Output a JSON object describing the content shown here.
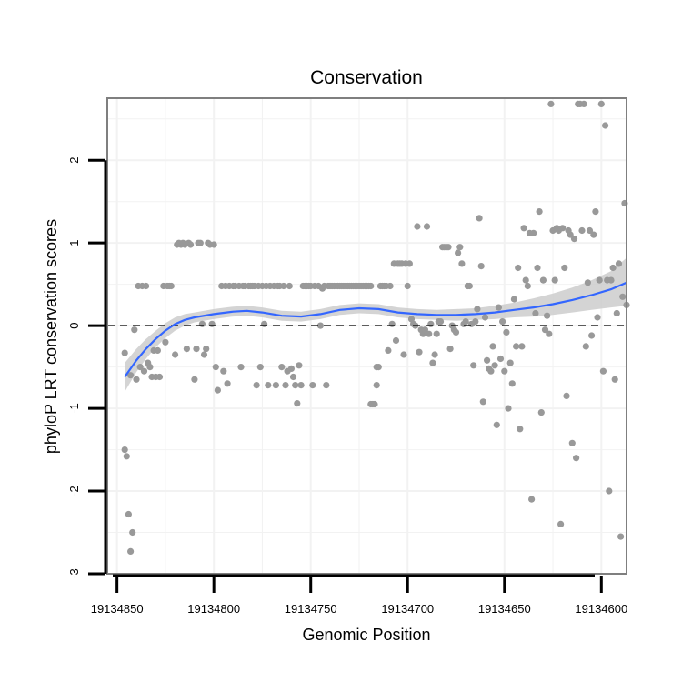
{
  "chart_data": {
    "type": "scatter",
    "title": "Conservation",
    "xlabel": "Genomic Position",
    "ylabel": "phyloP LRT conservation scores",
    "x_reversed": true,
    "xlim": [
      19134855,
      19134587
    ],
    "ylim": [
      -3,
      2.75
    ],
    "x_ticks": [
      19134850,
      19134800,
      19134750,
      19134700,
      19134650,
      19134600
    ],
    "x_tick_labels": [
      "19134850",
      "19134800",
      "19134750",
      "19134700",
      "19134650",
      "19134600"
    ],
    "y_ticks": [
      -3,
      -2,
      -1,
      0,
      1,
      2
    ],
    "y_tick_labels": [
      "-3",
      "-2",
      "-1",
      "0",
      "1",
      "2"
    ],
    "reference_line": {
      "y": 0,
      "style": "dashed"
    },
    "colors": {
      "points": "#999999",
      "smooth": "#3366ff",
      "ribbon": "#cccccc",
      "frame": "#7f7f7f",
      "grid": "#f2f2f2"
    },
    "points": [
      [
        19134846,
        -0.33
      ],
      [
        19134846,
        -1.5
      ],
      [
        19134845,
        -1.58
      ],
      [
        19134844,
        -2.28
      ],
      [
        19134843,
        -2.73
      ],
      [
        19134842,
        -2.5
      ],
      [
        19134843,
        -0.6
      ],
      [
        19134841,
        -0.05
      ],
      [
        19134840,
        -0.65
      ],
      [
        19134839,
        0.48
      ],
      [
        19134838,
        -0.5
      ],
      [
        19134837,
        0.48
      ],
      [
        19134836,
        -0.55
      ],
      [
        19134835,
        0.48
      ],
      [
        19134834,
        -0.45
      ],
      [
        19134833,
        -0.5
      ],
      [
        19134832,
        -0.62
      ],
      [
        19134831,
        -0.3
      ],
      [
        19134830,
        -0.62
      ],
      [
        19134829,
        -0.3
      ],
      [
        19134828,
        -0.62
      ],
      [
        19134826,
        0.48
      ],
      [
        19134825,
        -0.2
      ],
      [
        19134824,
        0.48
      ],
      [
        19134823,
        0.48
      ],
      [
        19134822,
        0.48
      ],
      [
        19134820,
        -0.35
      ],
      [
        19134819,
        0.98
      ],
      [
        19134818,
        1.0
      ],
      [
        19134817,
        0.98
      ],
      [
        19134816,
        1.0
      ],
      [
        19134815,
        0.98
      ],
      [
        19134814,
        -0.28
      ],
      [
        19134813,
        1.0
      ],
      [
        19134812,
        0.98
      ],
      [
        19134810,
        -0.65
      ],
      [
        19134809,
        -0.28
      ],
      [
        19134808,
        1.0
      ],
      [
        19134807,
        1.0
      ],
      [
        19134806,
        0.02
      ],
      [
        19134805,
        -0.35
      ],
      [
        19134804,
        -0.28
      ],
      [
        19134803,
        1.0
      ],
      [
        19134802,
        0.98
      ],
      [
        19134801,
        0.02
      ],
      [
        19134800,
        0.98
      ],
      [
        19134799,
        -0.5
      ],
      [
        19134798,
        -0.78
      ],
      [
        19134796,
        0.48
      ],
      [
        19134795,
        -0.55
      ],
      [
        19134794,
        0.48
      ],
      [
        19134793,
        -0.7
      ],
      [
        19134792,
        0.48
      ],
      [
        19134790,
        0.48
      ],
      [
        19134789,
        0.48
      ],
      [
        19134787,
        0.48
      ],
      [
        19134786,
        -0.5
      ],
      [
        19134785,
        0.48
      ],
      [
        19134784,
        0.48
      ],
      [
        19134782,
        0.48
      ],
      [
        19134781,
        0.48
      ],
      [
        19134780,
        0.48
      ],
      [
        19134779,
        0.48
      ],
      [
        19134778,
        -0.72
      ],
      [
        19134777,
        0.48
      ],
      [
        19134776,
        -0.5
      ],
      [
        19134775,
        0.48
      ],
      [
        19134774,
        0.02
      ],
      [
        19134773,
        0.48
      ],
      [
        19134772,
        -0.72
      ],
      [
        19134771,
        0.48
      ],
      [
        19134769,
        0.48
      ],
      [
        19134768,
        -0.72
      ],
      [
        19134767,
        0.48
      ],
      [
        19134766,
        0.48
      ],
      [
        19134765,
        -0.5
      ],
      [
        19134764,
        0.48
      ],
      [
        19134763,
        -0.72
      ],
      [
        19134762,
        -0.55
      ],
      [
        19134761,
        0.48
      ],
      [
        19134760,
        -0.52
      ],
      [
        19134759,
        -0.62
      ],
      [
        19134758,
        -0.72
      ],
      [
        19134757,
        -0.94
      ],
      [
        19134756,
        -0.48
      ],
      [
        19134755,
        -0.72
      ],
      [
        19134754,
        0.48
      ],
      [
        19134753,
        0.48
      ],
      [
        19134752,
        0.48
      ],
      [
        19134751,
        0.48
      ],
      [
        19134750,
        0.48
      ],
      [
        19134749,
        -0.72
      ],
      [
        19134748,
        0.48
      ],
      [
        19134746,
        0.48
      ],
      [
        19134745,
        0.0
      ],
      [
        19134744,
        0.45
      ],
      [
        19134743,
        0.48
      ],
      [
        19134742,
        -0.72
      ],
      [
        19134741,
        0.48
      ],
      [
        19134740,
        0.48
      ],
      [
        19134739,
        0.48
      ],
      [
        19134738,
        0.48
      ],
      [
        19134737,
        0.48
      ],
      [
        19134736,
        0.48
      ],
      [
        19134735,
        0.48
      ],
      [
        19134734,
        0.48
      ],
      [
        19134733,
        0.48
      ],
      [
        19134732,
        0.48
      ],
      [
        19134731,
        0.48
      ],
      [
        19134730,
        0.48
      ],
      [
        19134729,
        0.48
      ],
      [
        19134728,
        0.48
      ],
      [
        19134727,
        0.48
      ],
      [
        19134726,
        0.48
      ],
      [
        19134725,
        0.48
      ],
      [
        19134724,
        0.48
      ],
      [
        19134723,
        0.48
      ],
      [
        19134722,
        0.48
      ],
      [
        19134721,
        0.48
      ],
      [
        19134720,
        0.48
      ],
      [
        19134719,
        0.48
      ],
      [
        19134719,
        -0.95
      ],
      [
        19134718,
        -0.95
      ],
      [
        19134717,
        -0.95
      ],
      [
        19134716,
        -0.5
      ],
      [
        19134716,
        -0.72
      ],
      [
        19134715,
        -0.5
      ],
      [
        19134714,
        0.48
      ],
      [
        19134713,
        0.48
      ],
      [
        19134712,
        0.48
      ],
      [
        19134711,
        0.48
      ],
      [
        19134710,
        -0.3
      ],
      [
        19134709,
        0.48
      ],
      [
        19134708,
        0.02
      ],
      [
        19134707,
        0.75
      ],
      [
        19134706,
        -0.18
      ],
      [
        19134705,
        0.75
      ],
      [
        19134704,
        0.75
      ],
      [
        19134703,
        0.75
      ],
      [
        19134702,
        -0.35
      ],
      [
        19134701,
        0.75
      ],
      [
        19134700,
        0.48
      ],
      [
        19134699,
        0.75
      ],
      [
        19134698,
        0.08
      ],
      [
        19134697,
        0.02
      ],
      [
        19134696,
        0.0
      ],
      [
        19134695,
        1.2
      ],
      [
        19134694,
        -0.32
      ],
      [
        19134693,
        -0.05
      ],
      [
        19134692,
        -0.1
      ],
      [
        19134691,
        -0.05
      ],
      [
        19134690,
        1.2
      ],
      [
        19134689,
        -0.1
      ],
      [
        19134688,
        0.02
      ],
      [
        19134687,
        -0.45
      ],
      [
        19134686,
        -0.35
      ],
      [
        19134685,
        -0.1
      ],
      [
        19134684,
        0.05
      ],
      [
        19134683,
        0.05
      ],
      [
        19134682,
        0.95
      ],
      [
        19134681,
        0.95
      ],
      [
        19134680,
        0.95
      ],
      [
        19134679,
        0.95
      ],
      [
        19134678,
        -0.28
      ],
      [
        19134677,
        0.0
      ],
      [
        19134676,
        -0.05
      ],
      [
        19134675,
        -0.08
      ],
      [
        19134674,
        0.88
      ],
      [
        19134673,
        0.95
      ],
      [
        19134672,
        0.75
      ],
      [
        19134671,
        0.02
      ],
      [
        19134670,
        0.05
      ],
      [
        19134669,
        0.48
      ],
      [
        19134668,
        0.48
      ],
      [
        19134667,
        0.02
      ],
      [
        19134666,
        -0.48
      ],
      [
        19134665,
        0.05
      ],
      [
        19134664,
        0.2
      ],
      [
        19134663,
        1.3
      ],
      [
        19134662,
        0.72
      ],
      [
        19134661,
        -0.92
      ],
      [
        19134660,
        0.1
      ],
      [
        19134659,
        -0.42
      ],
      [
        19134658,
        -0.52
      ],
      [
        19134657,
        -0.55
      ],
      [
        19134656,
        -0.25
      ],
      [
        19134655,
        -0.48
      ],
      [
        19134654,
        -1.2
      ],
      [
        19134653,
        0.22
      ],
      [
        19134652,
        -0.4
      ],
      [
        19134651,
        0.05
      ],
      [
        19134650,
        -0.55
      ],
      [
        19134649,
        -0.08
      ],
      [
        19134648,
        -1.0
      ],
      [
        19134647,
        -0.45
      ],
      [
        19134646,
        -0.7
      ],
      [
        19134645,
        0.32
      ],
      [
        19134644,
        -0.25
      ],
      [
        19134643,
        0.7
      ],
      [
        19134642,
        -1.25
      ],
      [
        19134641,
        -0.25
      ],
      [
        19134640,
        1.18
      ],
      [
        19134639,
        0.55
      ],
      [
        19134638,
        0.48
      ],
      [
        19134637,
        1.12
      ],
      [
        19134636,
        -2.1
      ],
      [
        19134635,
        1.12
      ],
      [
        19134634,
        0.15
      ],
      [
        19134633,
        0.7
      ],
      [
        19134632,
        1.38
      ],
      [
        19134631,
        -1.05
      ],
      [
        19134630,
        0.55
      ],
      [
        19134629,
        -0.05
      ],
      [
        19134628,
        0.12
      ],
      [
        19134627,
        -0.1
      ],
      [
        19134626,
        2.68
      ],
      [
        19134625,
        1.15
      ],
      [
        19134624,
        0.55
      ],
      [
        19134623,
        1.18
      ],
      [
        19134622,
        1.15
      ],
      [
        19134621,
        -2.4
      ],
      [
        19134620,
        1.18
      ],
      [
        19134619,
        0.7
      ],
      [
        19134618,
        -0.85
      ],
      [
        19134617,
        1.15
      ],
      [
        19134616,
        1.1
      ],
      [
        19134615,
        -1.42
      ],
      [
        19134614,
        1.05
      ],
      [
        19134613,
        -1.6
      ],
      [
        19134612,
        2.68
      ],
      [
        19134611,
        2.68
      ],
      [
        19134610,
        1.15
      ],
      [
        19134609,
        2.68
      ],
      [
        19134608,
        -0.25
      ],
      [
        19134607,
        0.52
      ],
      [
        19134606,
        1.15
      ],
      [
        19134605,
        -0.12
      ],
      [
        19134604,
        1.1
      ],
      [
        19134603,
        1.38
      ],
      [
        19134602,
        0.1
      ],
      [
        19134601,
        0.55
      ],
      [
        19134600,
        2.68
      ],
      [
        19134599,
        -0.55
      ],
      [
        19134598,
        2.42
      ],
      [
        19134597,
        0.55
      ],
      [
        19134596,
        -2.0
      ],
      [
        19134595,
        0.55
      ],
      [
        19134594,
        0.7
      ],
      [
        19134593,
        -0.65
      ],
      [
        19134592,
        0.15
      ],
      [
        19134591,
        0.75
      ],
      [
        19134590,
        -2.55
      ],
      [
        19134589,
        0.35
      ],
      [
        19134588,
        1.48
      ],
      [
        19134587,
        0.25
      ]
    ],
    "smooth": [
      [
        19134846,
        -0.62
      ],
      [
        19134840,
        -0.42
      ],
      [
        19134835,
        -0.28
      ],
      [
        19134830,
        -0.16
      ],
      [
        19134825,
        -0.06
      ],
      [
        19134820,
        0.02
      ],
      [
        19134815,
        0.07
      ],
      [
        19134810,
        0.1
      ],
      [
        19134800,
        0.14
      ],
      [
        19134790,
        0.17
      ],
      [
        19134783,
        0.18
      ],
      [
        19134775,
        0.16
      ],
      [
        19134765,
        0.12
      ],
      [
        19134755,
        0.11
      ],
      [
        19134745,
        0.14
      ],
      [
        19134735,
        0.19
      ],
      [
        19134725,
        0.21
      ],
      [
        19134715,
        0.2
      ],
      [
        19134705,
        0.16
      ],
      [
        19134695,
        0.14
      ],
      [
        19134685,
        0.13
      ],
      [
        19134675,
        0.13
      ],
      [
        19134665,
        0.14
      ],
      [
        19134655,
        0.16
      ],
      [
        19134645,
        0.19
      ],
      [
        19134635,
        0.22
      ],
      [
        19134625,
        0.26
      ],
      [
        19134615,
        0.31
      ],
      [
        19134605,
        0.37
      ],
      [
        19134595,
        0.44
      ],
      [
        19134587,
        0.52
      ]
    ],
    "ribbon_upper": [
      -0.45,
      -0.28,
      -0.16,
      -0.06,
      0.03,
      0.1,
      0.14,
      0.16,
      0.2,
      0.23,
      0.24,
      0.22,
      0.18,
      0.17,
      0.2,
      0.25,
      0.27,
      0.26,
      0.22,
      0.2,
      0.19,
      0.2,
      0.21,
      0.24,
      0.28,
      0.33,
      0.39,
      0.46,
      0.55,
      0.66,
      0.82
    ],
    "ribbon_lower": [
      -0.8,
      -0.56,
      -0.4,
      -0.26,
      -0.15,
      -0.06,
      0.0,
      0.04,
      0.08,
      0.11,
      0.12,
      0.1,
      0.06,
      0.05,
      0.08,
      0.13,
      0.15,
      0.14,
      0.1,
      0.08,
      0.07,
      0.06,
      0.07,
      0.08,
      0.1,
      0.11,
      0.13,
      0.16,
      0.19,
      0.22,
      0.24
    ]
  }
}
